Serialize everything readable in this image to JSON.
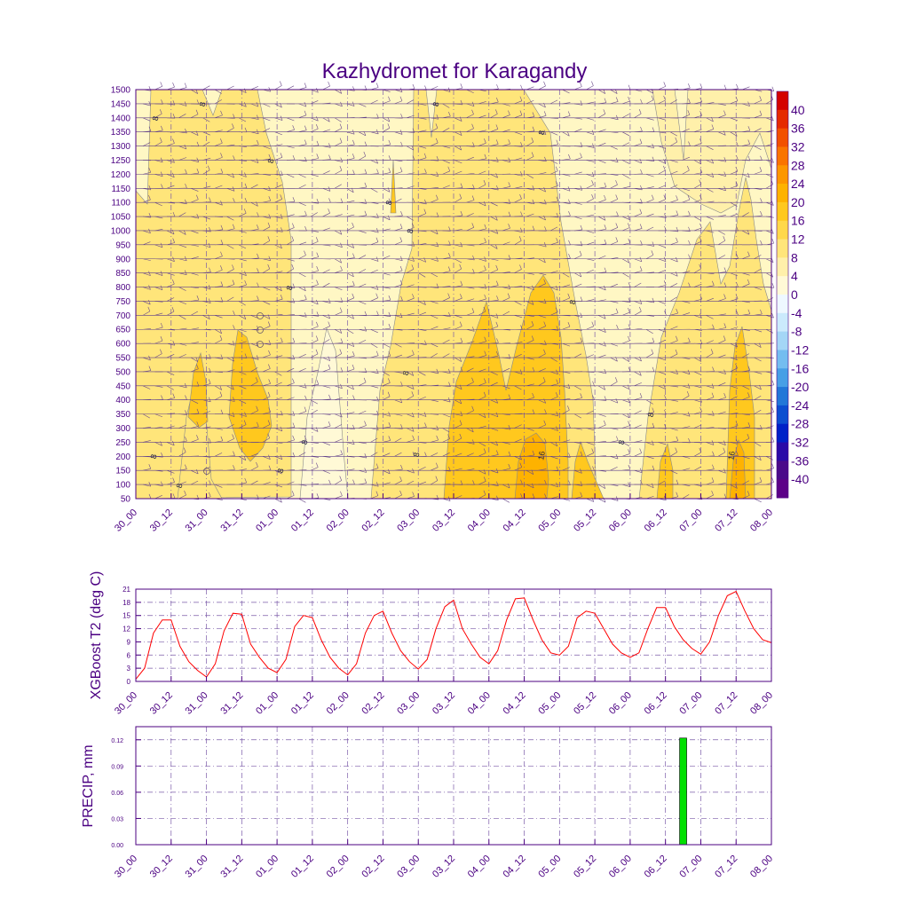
{
  "title": "Kazhydromet for Karagandy",
  "colors": {
    "frame": "#4b0082",
    "text": "#4b0082",
    "grid": "#7a5aa8",
    "t2_line": "#ff0000",
    "precip_bar": "#00e000",
    "contour_line": "#8a8a8a"
  },
  "time_labels": [
    "30_00",
    "30_12",
    "31_00",
    "31_12",
    "01_00",
    "01_12",
    "02_00",
    "02_12",
    "03_00",
    "03_12",
    "04_00",
    "04_12",
    "05_00",
    "05_12",
    "06_00",
    "06_12",
    "07_00",
    "07_12",
    "08_00"
  ],
  "colorbar": {
    "labels": [
      "40",
      "36",
      "32",
      "28",
      "24",
      "20",
      "16",
      "12",
      "8",
      "4",
      "0",
      "-4",
      "-8",
      "-12",
      "-16",
      "-20",
      "-24",
      "-28",
      "-32",
      "-36",
      "-40"
    ],
    "bins": [
      {
        "color": "#d40000"
      },
      {
        "color": "#e52a00"
      },
      {
        "color": "#f25000"
      },
      {
        "color": "#fa7400"
      },
      {
        "color": "#fd9600"
      },
      {
        "color": "#feb200"
      },
      {
        "color": "#ffc81e"
      },
      {
        "color": "#ffd84a"
      },
      {
        "color": "#ffe57a"
      },
      {
        "color": "#fff0aa"
      },
      {
        "color": "#fff9d6"
      },
      {
        "color": "#eef8ff"
      },
      {
        "color": "#cbeafc"
      },
      {
        "color": "#a4d6f6"
      },
      {
        "color": "#74bdf0"
      },
      {
        "color": "#479fe6"
      },
      {
        "color": "#2277d8"
      },
      {
        "color": "#0c4dd0"
      },
      {
        "color": "#0020c8"
      },
      {
        "color": "#2a0aa8"
      },
      {
        "color": "#4a0a8a"
      },
      {
        "color": "#5c0088"
      }
    ]
  },
  "chart_data": [
    {
      "type": "heatmap",
      "title": "Kazhydromet for Karagandy",
      "xlabel": "",
      "ylabel": "",
      "x_ticks": [
        "30_00",
        "30_12",
        "31_00",
        "31_12",
        "01_00",
        "01_12",
        "02_00",
        "02_12",
        "03_00",
        "03_12",
        "04_00",
        "04_12",
        "05_00",
        "05_12",
        "06_00",
        "06_12",
        "07_00",
        "07_12",
        "08_00"
      ],
      "y_ticks": [
        50,
        100,
        150,
        200,
        250,
        300,
        350,
        400,
        450,
        500,
        550,
        600,
        650,
        700,
        750,
        800,
        850,
        900,
        950,
        1000,
        1050,
        1100,
        1150,
        1200,
        1250,
        1300,
        1350,
        1400,
        1450,
        1500
      ],
      "ylim": [
        50,
        1500
      ],
      "contour_labels": [
        "8",
        "8",
        "8",
        "8",
        "8",
        "8",
        "8",
        "8",
        "8",
        "8",
        "8",
        "8",
        "8",
        "8",
        "8",
        "8",
        "8",
        "16",
        "16"
      ]
    },
    {
      "type": "line",
      "ylabel": "XGBoost T2 (deg C)",
      "ylim": [
        0,
        21
      ],
      "y_ticks": [
        0,
        3,
        6,
        9,
        12,
        15,
        18,
        21
      ],
      "x_ticks": [
        "30_00",
        "30_12",
        "31_00",
        "31_12",
        "01_00",
        "01_12",
        "02_00",
        "02_12",
        "03_00",
        "03_12",
        "04_00",
        "04_12",
        "05_00",
        "05_12",
        "06_00",
        "06_12",
        "07_00",
        "07_12",
        "08_00"
      ],
      "x_step_hours": 3,
      "values": [
        0.5,
        3,
        11,
        14,
        14,
        8,
        4.5,
        2.5,
        1,
        4,
        11.5,
        15.5,
        15.3,
        8.5,
        5.5,
        3,
        2,
        5,
        12.5,
        15,
        14.5,
        9.5,
        5.5,
        3,
        1.5,
        4,
        11,
        15,
        16,
        11,
        7,
        4.5,
        2.8,
        5,
        12,
        17,
        18.5,
        12,
        8.5,
        5.5,
        4,
        7,
        14,
        18.8,
        19,
        14,
        9.5,
        6.5,
        6,
        8,
        14.5,
        16,
        15.5,
        12,
        8.5,
        6.5,
        5.5,
        6.5,
        12,
        16.8,
        16.8,
        12.5,
        9.5,
        7.5,
        6.2,
        9,
        15,
        19.5,
        20.5,
        16,
        12,
        9.5,
        8.8
      ]
    },
    {
      "type": "bar",
      "ylabel": "PRECIP, mm",
      "ylim": [
        0,
        0.135
      ],
      "y_ticks": [
        "0.00",
        "0.03",
        "0.06",
        "0.09",
        "0.12"
      ],
      "x_ticks": [
        "30_00",
        "30_12",
        "31_00",
        "31_12",
        "01_00",
        "01_12",
        "02_00",
        "02_12",
        "03_00",
        "03_12",
        "04_00",
        "04_12",
        "05_00",
        "05_12",
        "06_00",
        "06_12",
        "07_00",
        "07_12",
        "08_00"
      ],
      "bars": [
        {
          "hour": 186,
          "value": 0.122
        }
      ]
    }
  ]
}
